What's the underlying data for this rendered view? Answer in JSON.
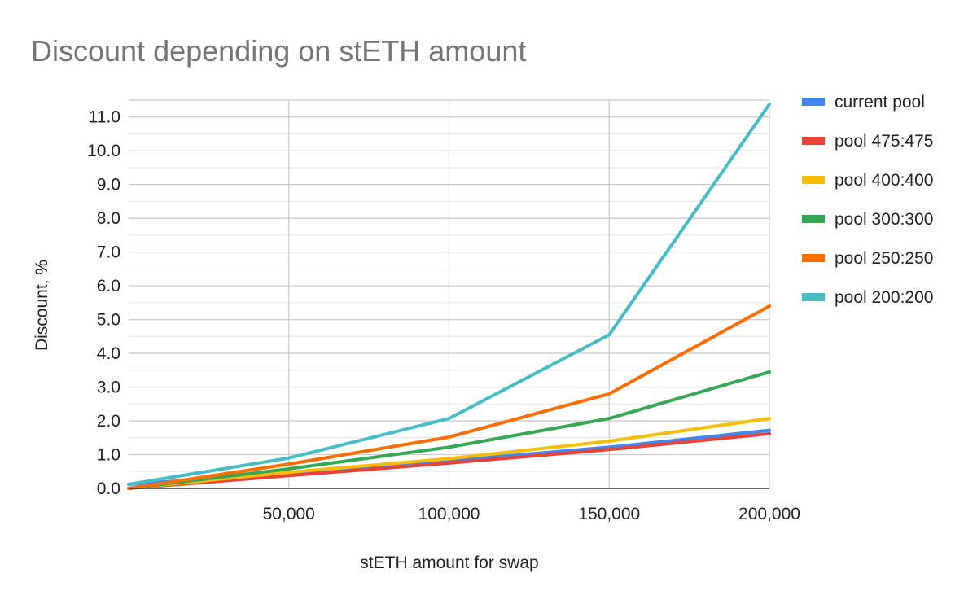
{
  "chart_data": {
    "type": "line",
    "title": "Discount depending on stETH amount",
    "xlabel": "stETH amount for swap",
    "ylabel": "Discount, %",
    "x": [
      0,
      50000,
      100000,
      150000,
      200000
    ],
    "x_tick_values": [
      50000,
      100000,
      150000,
      200000
    ],
    "x_tick_labels": [
      "50,000",
      "100,000",
      "150,000",
      "200,000"
    ],
    "xlim": [
      0,
      200000
    ],
    "ylim": [
      0,
      11.5
    ],
    "y_tick_values": [
      0,
      1,
      2,
      3,
      4,
      5,
      6,
      7,
      8,
      9,
      10,
      11
    ],
    "y_tick_labels": [
      "0.0",
      "1.0",
      "2.0",
      "3.0",
      "4.0",
      "5.0",
      "6.0",
      "7.0",
      "8.0",
      "9.0",
      "10.0",
      "11.0"
    ],
    "grid": true,
    "legend_position": "right",
    "series": [
      {
        "name": "current pool",
        "color": "#4285f4",
        "values": [
          0.12,
          0.45,
          0.82,
          1.22,
          1.72
        ]
      },
      {
        "name": "pool 475:475",
        "color": "#ea4335",
        "values": [
          0.0,
          0.38,
          0.75,
          1.15,
          1.62
        ]
      },
      {
        "name": "pool 400:400",
        "color": "#fbbc04",
        "values": [
          0.0,
          0.48,
          0.88,
          1.4,
          2.07
        ]
      },
      {
        "name": "pool 300:300",
        "color": "#34a853",
        "values": [
          0.0,
          0.58,
          1.22,
          2.07,
          3.45
        ]
      },
      {
        "name": "pool 250:250",
        "color": "#ff6d01",
        "values": [
          0.0,
          0.72,
          1.52,
          2.8,
          5.4
        ]
      },
      {
        "name": "pool 200:200",
        "color": "#46bdc6",
        "values": [
          0.12,
          0.9,
          2.07,
          4.55,
          11.38
        ]
      }
    ]
  }
}
